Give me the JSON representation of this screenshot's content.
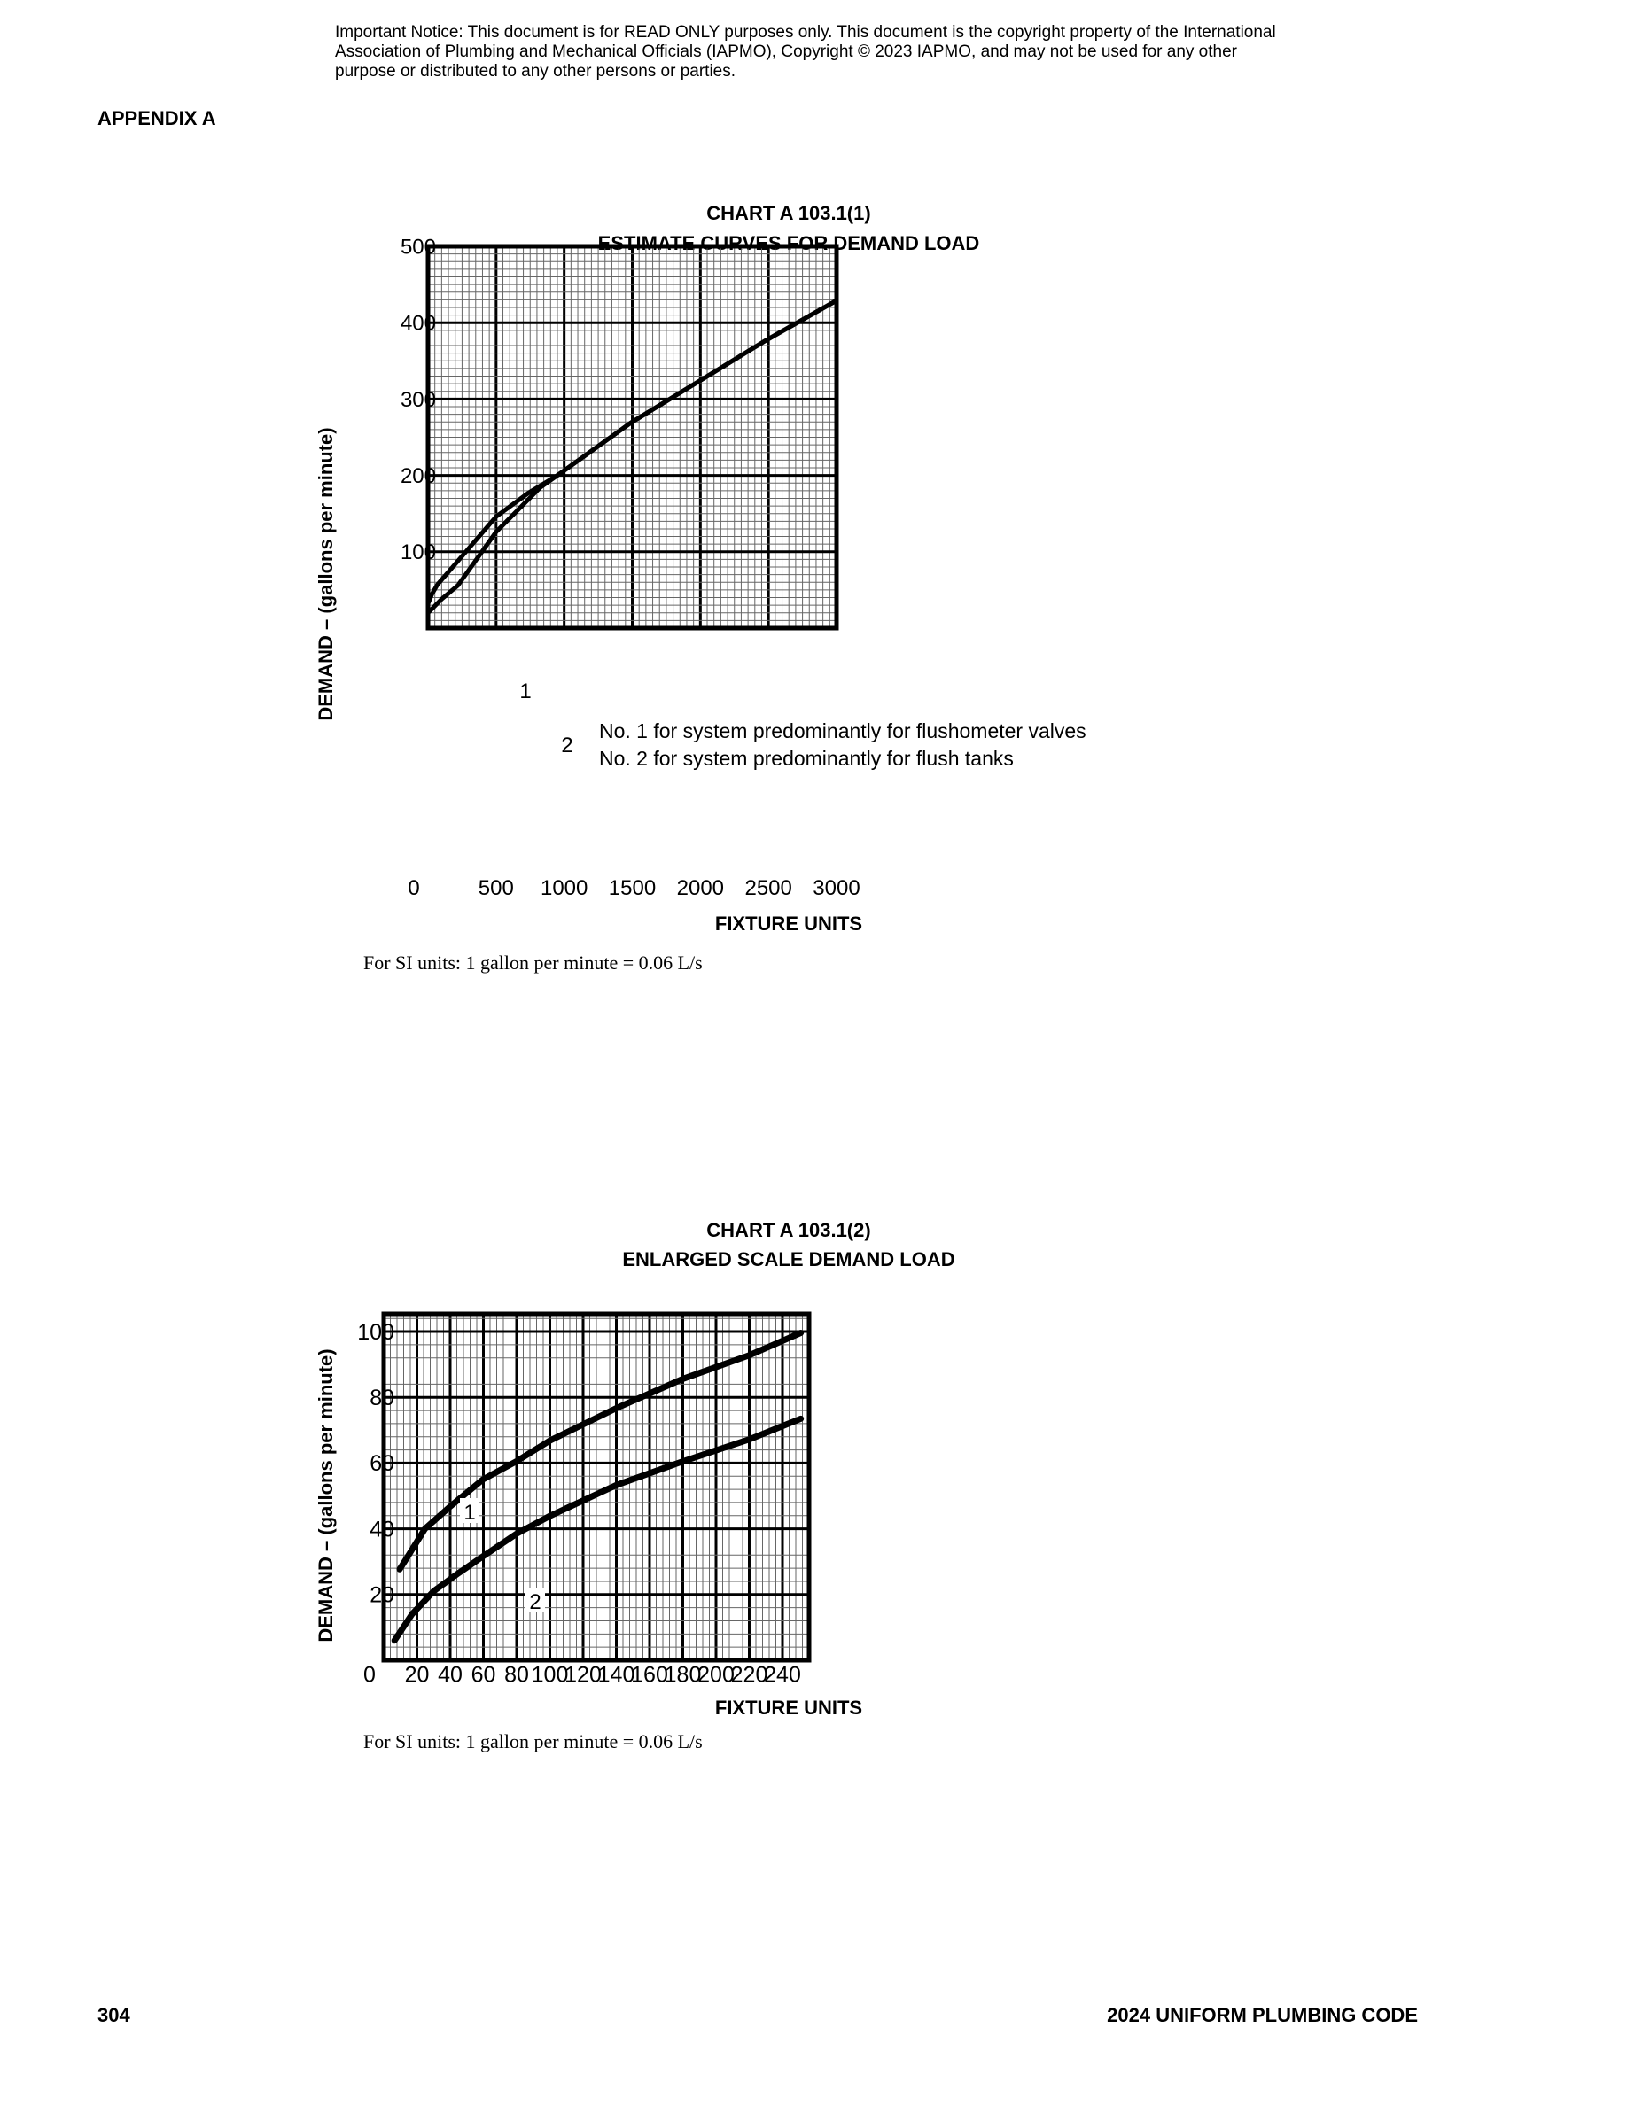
{
  "notice": "Important Notice: This document is for READ ONLY purposes only. This document is the copyright property of the International Association of Plumbing and Mechanical Officials (IAPMO), Copyright © 2023 IAPMO, and may not be used for any other purpose or distributed to any other persons or parties.",
  "appendix": "APPENDIX A",
  "footer": {
    "page": "304",
    "book": "2024 UNIFORM PLUMBING CODE"
  },
  "chart_data": [
    {
      "type": "line",
      "title": "CHART A 103.1(1)",
      "subtitle": "ESTIMATE CURVES FOR DEMAND LOAD",
      "xlabel": "FIXTURE UNITS",
      "ylabel": "DEMAND – (gallons per minute)",
      "xlim": [
        0,
        3000
      ],
      "ylim": [
        0,
        500
      ],
      "xticks": [
        "0",
        "500",
        "1000",
        "1500",
        "2000",
        "2500",
        "3000"
      ],
      "yticks": [
        "100",
        "200",
        "300",
        "400",
        "500"
      ],
      "grid": true,
      "note": "For SI units: 1 gallon per minute = 0.06 L/s",
      "legend": [
        "No. 1 for system predominantly for flushometer valves",
        "No. 2 for system predominantly for flush tanks"
      ],
      "series": [
        {
          "name": "1",
          "x": [
            0,
            30,
            69,
            220,
            500,
            737,
            950,
            1490,
            1987,
            2483,
            3000
          ],
          "y": [
            32,
            45,
            57,
            88,
            146,
            177,
            200,
            269,
            323,
            377,
            429
          ]
        },
        {
          "name": "2",
          "x": [
            0,
            100,
            220,
            500,
            823,
            950,
            1490,
            1987,
            2483,
            3000
          ],
          "y": [
            20,
            38,
            56,
            126,
            184,
            200,
            269,
            323,
            377,
            429
          ]
        }
      ]
    },
    {
      "type": "line",
      "title": "CHART A 103.1(2)",
      "subtitle": "ENLARGED SCALE DEMAND LOAD",
      "xlabel": "FIXTURE UNITS",
      "ylabel": "DEMAND – (gallons per minute)",
      "xlim": [
        0,
        256
      ],
      "ylim": [
        0,
        105
      ],
      "xticks": [
        "0",
        "20",
        "40",
        "60",
        "80",
        "100",
        "120",
        "140",
        "160",
        "180",
        "200",
        "220",
        "240"
      ],
      "yticks": [
        "20",
        "40",
        "60",
        "80",
        "100"
      ],
      "grid": true,
      "note": "For SI units: 1 gallon per minute = 0.06 L/s",
      "series": [
        {
          "name": "1",
          "x": [
            9.6,
            15,
            24.8,
            40.5,
            59.7,
            79.8,
            99.9,
            140,
            180,
            220,
            251
          ],
          "y": [
            27.7,
            32,
            40,
            47,
            55,
            60.5,
            66.8,
            76.7,
            85.6,
            92.8,
            99.6
          ]
        },
        {
          "name": "2",
          "x": [
            6.5,
            17,
            30,
            45,
            60,
            80,
            100,
            140,
            180,
            220,
            251
          ],
          "y": [
            6,
            14,
            21,
            26.5,
            31.7,
            38.5,
            43.9,
            53.3,
            60.5,
            67.2,
            73.5
          ]
        }
      ]
    }
  ]
}
